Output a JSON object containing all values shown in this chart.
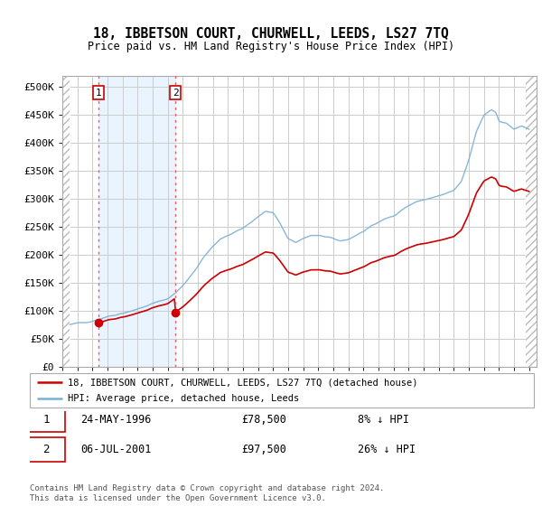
{
  "title": "18, IBBETSON COURT, CHURWELL, LEEDS, LS27 7TQ",
  "subtitle": "Price paid vs. HM Land Registry's House Price Index (HPI)",
  "legend_line1": "18, IBBETSON COURT, CHURWELL, LEEDS, LS27 7TQ (detached house)",
  "legend_line2": "HPI: Average price, detached house, Leeds",
  "transaction1_date": "24-MAY-1996",
  "transaction1_price": 78500,
  "transaction1_label": "8% ↓ HPI",
  "transaction2_date": "06-JUL-2001",
  "transaction2_price": 97500,
  "transaction2_label": "26% ↓ HPI",
  "footer": "Contains HM Land Registry data © Crown copyright and database right 2024.\nThis data is licensed under the Open Government Licence v3.0.",
  "hpi_color": "#7bafd4",
  "price_color": "#cc0000",
  "marker_color": "#cc0000",
  "vline_color": "#ff5555",
  "ylim": [
    0,
    520000
  ],
  "yticks": [
    0,
    50000,
    100000,
    150000,
    200000,
    250000,
    300000,
    350000,
    400000,
    450000,
    500000
  ],
  "xlim_start": 1994.0,
  "xlim_end": 2025.5,
  "transaction1_x": 1996.39,
  "transaction2_x": 2001.51,
  "hpi_data_start": 1994.5,
  "hpi_data_end": 2025.0
}
